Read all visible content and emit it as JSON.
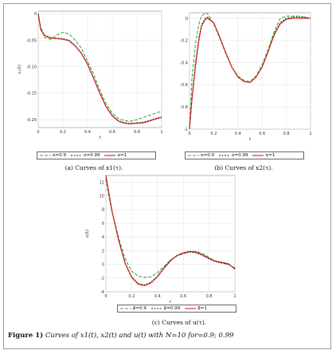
{
  "figure": {
    "label": "Figure 1)",
    "text": "Curves of x1(t), x2(t) and u(t) with N=10 for=0.9; 0.99"
  },
  "colors": {
    "green": "#3aa83a",
    "black": "#222222",
    "red": "#d62020",
    "grid": "#e6e6e6",
    "axis": "#555555"
  },
  "panels": [
    {
      "caption": "(a) Curves of x1(τ).",
      "legend": [
        "α=0.9",
        "α=0.99",
        "α=1"
      ],
      "chart_data": {
        "type": "line",
        "xlabel": "t",
        "ylabel": "x₁(t)",
        "xlim": [
          0,
          1
        ],
        "ylim": [
          -0.215,
          0.005
        ],
        "xticks": [
          0,
          0.2,
          0.4,
          0.6,
          0.8,
          1
        ],
        "xtick_labels": [
          "0",
          "0.2",
          "0.4",
          "0.6",
          "0.8",
          "1"
        ],
        "yticks": [
          0,
          -0.05,
          -0.1,
          -0.15,
          -0.2
        ],
        "ytick_labels": [
          "0",
          "-0.05",
          "-0.10",
          "-0.15",
          "-0.20"
        ],
        "grid": true,
        "x": [
          0,
          0.02,
          0.05,
          0.1,
          0.15,
          0.2,
          0.25,
          0.3,
          0.35,
          0.4,
          0.45,
          0.5,
          0.55,
          0.6,
          0.65,
          0.7,
          0.75,
          0.8,
          0.85,
          0.9,
          0.95,
          1
        ],
        "series": [
          {
            "name": "α=0.9",
            "color": "#3aa83a",
            "dash": "4,2",
            "values": [
              0,
              -0.025,
              -0.045,
              -0.048,
              -0.04,
              -0.035,
              -0.038,
              -0.05,
              -0.065,
              -0.09,
              -0.115,
              -0.145,
              -0.17,
              -0.188,
              -0.198,
              -0.202,
              -0.203,
              -0.2,
              -0.196,
              -0.192,
              -0.188,
              -0.184
            ]
          },
          {
            "name": "α=0.99",
            "color": "#222222",
            "dash": "2,1.5",
            "values": [
              0,
              -0.028,
              -0.04,
              -0.045,
              -0.046,
              -0.047,
              -0.05,
              -0.06,
              -0.074,
              -0.095,
              -0.122,
              -0.15,
              -0.175,
              -0.192,
              -0.202,
              -0.206,
              -0.207,
              -0.206,
              -0.205,
              -0.202,
              -0.198,
              -0.195
            ]
          },
          {
            "name": "α=1",
            "color": "#d62020",
            "dash": "",
            "values": [
              0,
              -0.03,
              -0.041,
              -0.046,
              -0.047,
              -0.048,
              -0.051,
              -0.061,
              -0.075,
              -0.096,
              -0.123,
              -0.151,
              -0.176,
              -0.193,
              -0.203,
              -0.207,
              -0.208,
              -0.207,
              -0.206,
              -0.203,
              -0.199,
              -0.196
            ]
          }
        ]
      }
    },
    {
      "caption": "(b) Curves of x2(τ).",
      "legend": [
        "α=0.9",
        "α=0.99",
        "α=1"
      ],
      "chart_data": {
        "type": "line",
        "xlabel": "t",
        "ylabel": "",
        "xlim": [
          0,
          1
        ],
        "ylim": [
          -1.0,
          0.05
        ],
        "xticks": [
          0,
          0.2,
          0.4,
          0.6,
          0.8,
          1
        ],
        "xtick_labels": [
          "0",
          "0.2",
          "0.4",
          "0.6",
          "0.8",
          "1"
        ],
        "yticks": [
          0,
          -0.2,
          -0.4,
          -0.6,
          -0.8,
          -1
        ],
        "ytick_labels": [
          "0",
          "-0.2",
          "-0.4",
          "-0.6",
          "-0.8",
          "-1"
        ],
        "grid": true,
        "x": [
          0,
          0.02,
          0.05,
          0.08,
          0.1,
          0.13,
          0.15,
          0.2,
          0.25,
          0.3,
          0.35,
          0.4,
          0.45,
          0.5,
          0.55,
          0.6,
          0.65,
          0.7,
          0.75,
          0.8,
          0.85,
          0.9,
          0.95,
          1
        ],
        "series": [
          {
            "name": "α=0.9",
            "color": "#3aa83a",
            "dash": "4,2",
            "values": [
              -1.0,
              -0.55,
              -0.22,
              -0.04,
              0.02,
              0.05,
              0.04,
              -0.05,
              -0.18,
              -0.32,
              -0.44,
              -0.52,
              -0.56,
              -0.57,
              -0.52,
              -0.42,
              -0.28,
              -0.12,
              0.0,
              0.02,
              0.02,
              0.02,
              0.01,
              0.0
            ]
          },
          {
            "name": "α=0.99",
            "color": "#222222",
            "dash": "2,1.5",
            "values": [
              -1.0,
              -0.72,
              -0.4,
              -0.16,
              -0.06,
              0.0,
              0.01,
              -0.04,
              -0.17,
              -0.31,
              -0.44,
              -0.53,
              -0.57,
              -0.58,
              -0.53,
              -0.44,
              -0.3,
              -0.14,
              -0.04,
              0.0,
              0.01,
              0.01,
              0.01,
              0.0
            ]
          },
          {
            "name": "α=1",
            "color": "#d62020",
            "dash": "",
            "values": [
              -1.0,
              -0.74,
              -0.43,
              -0.18,
              -0.07,
              -0.01,
              0.0,
              -0.04,
              -0.17,
              -0.31,
              -0.44,
              -0.53,
              -0.57,
              -0.58,
              -0.53,
              -0.44,
              -0.3,
              -0.15,
              -0.05,
              -0.01,
              0.0,
              0.0,
              0.0,
              0.0
            ]
          }
        ]
      }
    },
    {
      "caption": "(c) Curves of u(τ).",
      "legend": [
        "β=0.9",
        "β=0.99",
        "β=1"
      ],
      "chart_data": {
        "type": "line",
        "xlabel": "t",
        "ylabel": "u(t)",
        "xlim": [
          0,
          1
        ],
        "ylim": [
          -4,
          13
        ],
        "xticks": [
          0,
          0.2,
          0.4,
          0.6,
          0.8,
          1
        ],
        "xtick_labels": [
          "0",
          "0.2",
          "0.4",
          "0.6",
          "0.8",
          "1"
        ],
        "yticks": [
          12,
          10,
          8,
          6,
          4,
          2,
          0,
          -2,
          -4
        ],
        "ytick_labels": [
          "12",
          "10",
          "8",
          "6",
          "4",
          "2",
          "0",
          "-2",
          "-4"
        ],
        "grid": true,
        "x": [
          0,
          0.02,
          0.05,
          0.1,
          0.15,
          0.2,
          0.25,
          0.3,
          0.35,
          0.4,
          0.45,
          0.5,
          0.55,
          0.6,
          0.65,
          0.7,
          0.75,
          0.8,
          0.85,
          0.9,
          0.95,
          1
        ],
        "series": [
          {
            "name": "β=0.9",
            "color": "#3aa83a",
            "dash": "4,2",
            "values": [
              12.5,
              10.2,
              7.5,
              3.8,
              0.8,
              -1.0,
              -1.7,
              -1.9,
              -1.8,
              -1.2,
              -0.3,
              0.6,
              1.2,
              1.6,
              1.9,
              1.9,
              1.6,
              1.0,
              0.5,
              0.2,
              0.0,
              -0.5
            ]
          },
          {
            "name": "β=0.99",
            "color": "#222222",
            "dash": "2,1.5",
            "values": [
              13.0,
              10.8,
              7.6,
              3.5,
              0.2,
              -1.8,
              -2.8,
              -3.0,
              -2.6,
              -1.7,
              -0.5,
              0.6,
              1.3,
              1.6,
              1.8,
              1.7,
              1.3,
              0.8,
              0.4,
              0.2,
              0.0,
              -0.6
            ]
          },
          {
            "name": "β=1",
            "color": "#d62020",
            "dash": "",
            "values": [
              13.0,
              10.7,
              7.5,
              3.4,
              0.1,
              -1.9,
              -2.9,
              -3.1,
              -2.7,
              -1.8,
              -0.6,
              0.5,
              1.3,
              1.7,
              1.9,
              1.8,
              1.4,
              0.9,
              0.5,
              0.3,
              0.1,
              -0.7
            ]
          }
        ]
      }
    }
  ]
}
